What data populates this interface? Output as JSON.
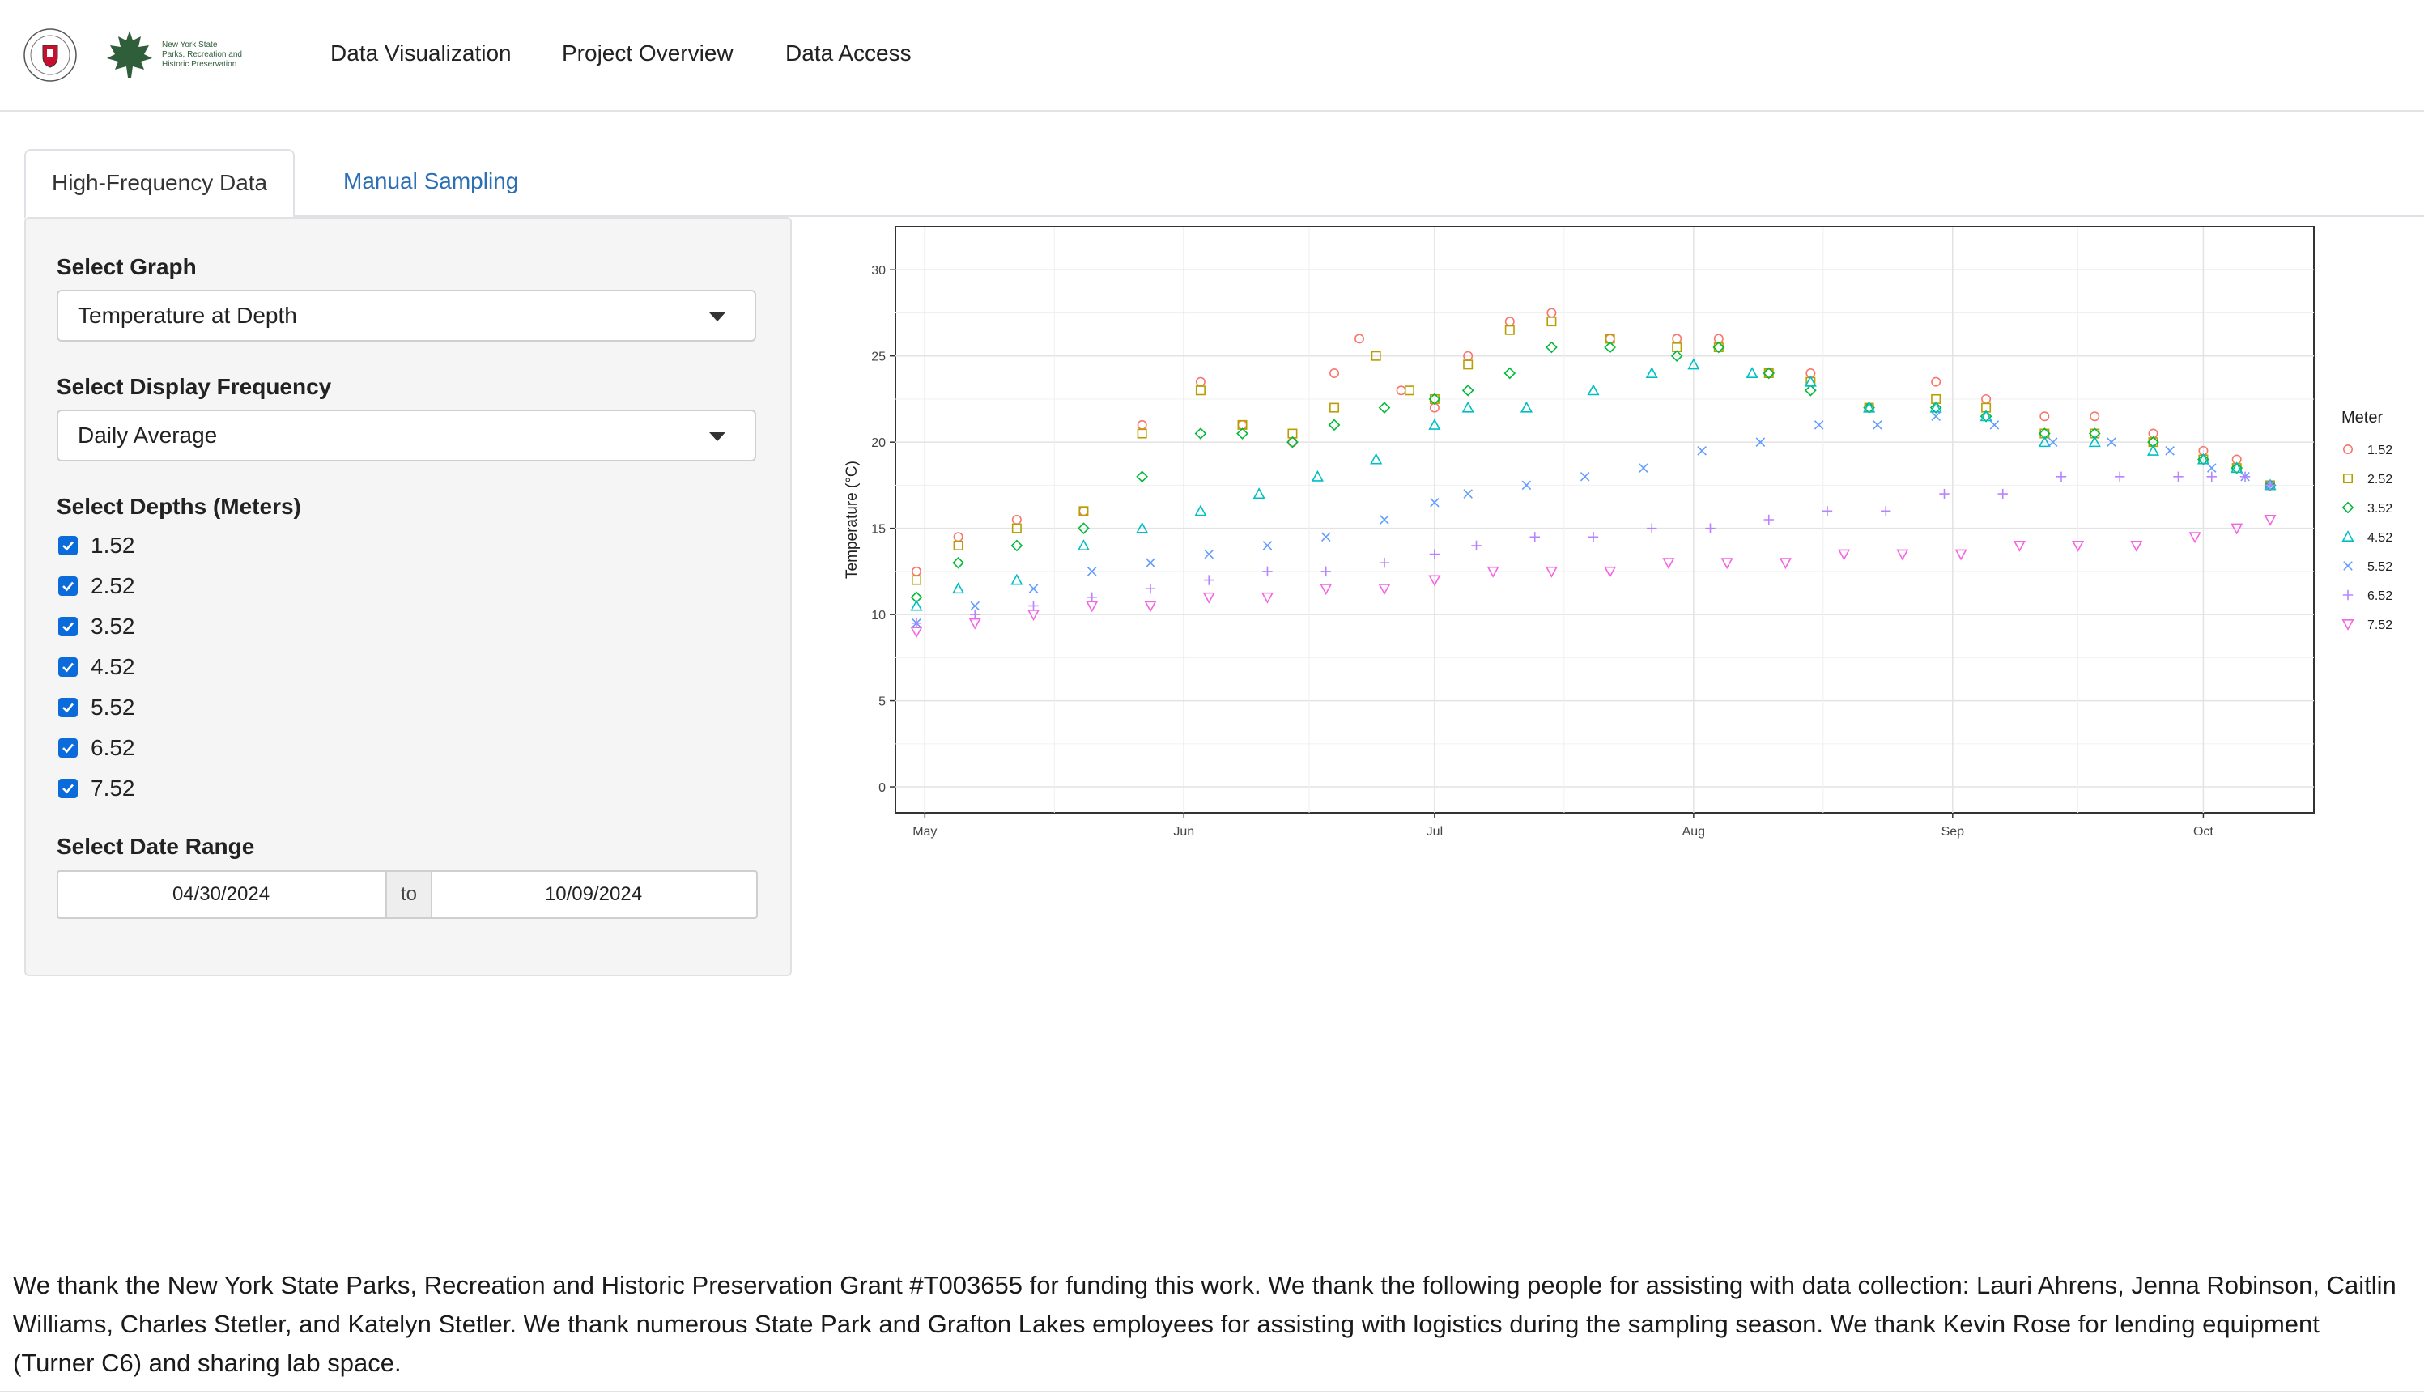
{
  "nav": {
    "items": [
      "Data Visualization",
      "Project Overview",
      "Data Access"
    ],
    "logo_text": [
      "New York State",
      "Parks, Recreation and",
      "Historic Preservation"
    ]
  },
  "tabs": [
    {
      "label": "High-Frequency Data",
      "active": true
    },
    {
      "label": "Manual Sampling",
      "active": false
    }
  ],
  "sidebar": {
    "graph_label": "Select Graph",
    "graph_value": "Temperature at Depth",
    "frequency_label": "Select Display Frequency",
    "frequency_value": "Daily Average",
    "depths_label": "Select Depths (Meters)",
    "depths": [
      {
        "label": "1.52",
        "checked": true
      },
      {
        "label": "2.52",
        "checked": true
      },
      {
        "label": "3.52",
        "checked": true
      },
      {
        "label": "4.52",
        "checked": true
      },
      {
        "label": "5.52",
        "checked": true
      },
      {
        "label": "6.52",
        "checked": true
      },
      {
        "label": "7.52",
        "checked": true
      }
    ],
    "date_label": "Select Date Range",
    "date_start": "04/30/2024",
    "date_sep": "to",
    "date_end": "10/09/2024"
  },
  "chart_data": {
    "type": "scatter",
    "ylabel": "Temperature (°C)",
    "xlabel": "",
    "ylim": [
      0,
      31
    ],
    "yticks": [
      0,
      5,
      10,
      15,
      20,
      25,
      30
    ],
    "xlim": [
      "2024-04-30",
      "2024-10-09"
    ],
    "xticks": [
      {
        "label": "May",
        "date": "2024-05-01"
      },
      {
        "label": "Jun",
        "date": "2024-06-01"
      },
      {
        "label": "Jul",
        "date": "2024-07-01"
      },
      {
        "label": "Aug",
        "date": "2024-08-01"
      },
      {
        "label": "Sep",
        "date": "2024-09-01"
      },
      {
        "label": "Oct",
        "date": "2024-10-01"
      }
    ],
    "grid": true,
    "legend_title": "Meter",
    "legend_position": "right",
    "series": [
      {
        "name": "1.52",
        "color": "#F8766D",
        "shape": "circle",
        "points": [
          [
            "2024-04-30",
            12.5
          ],
          [
            "2024-05-05",
            14.5
          ],
          [
            "2024-05-12",
            15.5
          ],
          [
            "2024-05-20",
            16
          ],
          [
            "2024-05-27",
            21
          ],
          [
            "2024-06-03",
            23.5
          ],
          [
            "2024-06-08",
            21
          ],
          [
            "2024-06-14",
            20
          ],
          [
            "2024-06-19",
            24
          ],
          [
            "2024-06-22",
            26
          ],
          [
            "2024-06-27",
            23
          ],
          [
            "2024-07-01",
            22
          ],
          [
            "2024-07-05",
            25
          ],
          [
            "2024-07-10",
            27
          ],
          [
            "2024-07-15",
            27.5
          ],
          [
            "2024-07-22",
            26
          ],
          [
            "2024-07-30",
            26
          ],
          [
            "2024-08-04",
            26
          ],
          [
            "2024-08-10",
            24
          ],
          [
            "2024-08-15",
            24
          ],
          [
            "2024-08-22",
            22
          ],
          [
            "2024-08-30",
            23.5
          ],
          [
            "2024-09-05",
            22.5
          ],
          [
            "2024-09-12",
            21.5
          ],
          [
            "2024-09-18",
            21.5
          ],
          [
            "2024-09-25",
            20.5
          ],
          [
            "2024-10-01",
            19.5
          ],
          [
            "2024-10-05",
            19
          ],
          [
            "2024-10-09",
            17.5
          ]
        ]
      },
      {
        "name": "2.52",
        "color": "#B79F00",
        "shape": "square",
        "points": [
          [
            "2024-04-30",
            12
          ],
          [
            "2024-05-05",
            14
          ],
          [
            "2024-05-12",
            15
          ],
          [
            "2024-05-20",
            16
          ],
          [
            "2024-05-27",
            20.5
          ],
          [
            "2024-06-03",
            23
          ],
          [
            "2024-06-08",
            21
          ],
          [
            "2024-06-14",
            20.5
          ],
          [
            "2024-06-19",
            22
          ],
          [
            "2024-06-24",
            25
          ],
          [
            "2024-06-28",
            23
          ],
          [
            "2024-07-01",
            22.5
          ],
          [
            "2024-07-05",
            24.5
          ],
          [
            "2024-07-10",
            26.5
          ],
          [
            "2024-07-15",
            27
          ],
          [
            "2024-07-22",
            26
          ],
          [
            "2024-07-30",
            25.5
          ],
          [
            "2024-08-04",
            25.5
          ],
          [
            "2024-08-10",
            24
          ],
          [
            "2024-08-15",
            23.5
          ],
          [
            "2024-08-22",
            22
          ],
          [
            "2024-08-30",
            22.5
          ],
          [
            "2024-09-05",
            22
          ],
          [
            "2024-09-12",
            20.5
          ],
          [
            "2024-09-18",
            20.5
          ],
          [
            "2024-09-25",
            20
          ],
          [
            "2024-10-01",
            19
          ],
          [
            "2024-10-05",
            18.5
          ],
          [
            "2024-10-09",
            17.5
          ]
        ]
      },
      {
        "name": "3.52",
        "color": "#00BA38",
        "shape": "diamond",
        "points": [
          [
            "2024-04-30",
            11
          ],
          [
            "2024-05-05",
            13
          ],
          [
            "2024-05-12",
            14
          ],
          [
            "2024-05-20",
            15
          ],
          [
            "2024-05-27",
            18
          ],
          [
            "2024-06-03",
            20.5
          ],
          [
            "2024-06-08",
            20.5
          ],
          [
            "2024-06-14",
            20
          ],
          [
            "2024-06-19",
            21
          ],
          [
            "2024-06-25",
            22
          ],
          [
            "2024-07-01",
            22.5
          ],
          [
            "2024-07-05",
            23
          ],
          [
            "2024-07-10",
            24
          ],
          [
            "2024-07-15",
            25.5
          ],
          [
            "2024-07-22",
            25.5
          ],
          [
            "2024-07-30",
            25
          ],
          [
            "2024-08-04",
            25.5
          ],
          [
            "2024-08-10",
            24
          ],
          [
            "2024-08-15",
            23
          ],
          [
            "2024-08-22",
            22
          ],
          [
            "2024-08-30",
            22
          ],
          [
            "2024-09-05",
            21.5
          ],
          [
            "2024-09-12",
            20.5
          ],
          [
            "2024-09-18",
            20.5
          ],
          [
            "2024-09-25",
            20
          ],
          [
            "2024-10-01",
            19
          ],
          [
            "2024-10-05",
            18.5
          ],
          [
            "2024-10-09",
            17.5
          ]
        ]
      },
      {
        "name": "4.52",
        "color": "#00BFC4",
        "shape": "triangle",
        "points": [
          [
            "2024-04-30",
            10.5
          ],
          [
            "2024-05-05",
            11.5
          ],
          [
            "2024-05-12",
            12
          ],
          [
            "2024-05-20",
            14
          ],
          [
            "2024-05-27",
            15
          ],
          [
            "2024-06-03",
            16
          ],
          [
            "2024-06-10",
            17
          ],
          [
            "2024-06-17",
            18
          ],
          [
            "2024-06-24",
            19
          ],
          [
            "2024-07-01",
            21
          ],
          [
            "2024-07-05",
            22
          ],
          [
            "2024-07-12",
            22
          ],
          [
            "2024-07-20",
            23
          ],
          [
            "2024-07-27",
            24
          ],
          [
            "2024-08-01",
            24.5
          ],
          [
            "2024-08-08",
            24
          ],
          [
            "2024-08-15",
            23.5
          ],
          [
            "2024-08-22",
            22
          ],
          [
            "2024-08-30",
            22
          ],
          [
            "2024-09-05",
            21.5
          ],
          [
            "2024-09-12",
            20
          ],
          [
            "2024-09-18",
            20
          ],
          [
            "2024-09-25",
            19.5
          ],
          [
            "2024-10-01",
            19
          ],
          [
            "2024-10-05",
            18.5
          ],
          [
            "2024-10-09",
            17.5
          ]
        ]
      },
      {
        "name": "5.52",
        "color": "#619CFF",
        "shape": "x",
        "points": [
          [
            "2024-04-30",
            9.5
          ],
          [
            "2024-05-07",
            10.5
          ],
          [
            "2024-05-14",
            11.5
          ],
          [
            "2024-05-21",
            12.5
          ],
          [
            "2024-05-28",
            13
          ],
          [
            "2024-06-04",
            13.5
          ],
          [
            "2024-06-11",
            14
          ],
          [
            "2024-06-18",
            14.5
          ],
          [
            "2024-06-25",
            15.5
          ],
          [
            "2024-07-01",
            16.5
          ],
          [
            "2024-07-05",
            17
          ],
          [
            "2024-07-12",
            17.5
          ],
          [
            "2024-07-19",
            18
          ],
          [
            "2024-07-26",
            18.5
          ],
          [
            "2024-08-02",
            19.5
          ],
          [
            "2024-08-09",
            20
          ],
          [
            "2024-08-16",
            21
          ],
          [
            "2024-08-23",
            21
          ],
          [
            "2024-08-30",
            21.5
          ],
          [
            "2024-09-06",
            21
          ],
          [
            "2024-09-13",
            20
          ],
          [
            "2024-09-20",
            20
          ],
          [
            "2024-09-27",
            19.5
          ],
          [
            "2024-10-02",
            18.5
          ],
          [
            "2024-10-06",
            18
          ],
          [
            "2024-10-09",
            17.5
          ]
        ]
      },
      {
        "name": "6.52",
        "color": "#B983FF",
        "shape": "plus",
        "points": [
          [
            "2024-04-30",
            9.5
          ],
          [
            "2024-05-07",
            10
          ],
          [
            "2024-05-14",
            10.5
          ],
          [
            "2024-05-21",
            11
          ],
          [
            "2024-05-28",
            11.5
          ],
          [
            "2024-06-04",
            12
          ],
          [
            "2024-06-11",
            12.5
          ],
          [
            "2024-06-18",
            12.5
          ],
          [
            "2024-06-25",
            13
          ],
          [
            "2024-07-01",
            13.5
          ],
          [
            "2024-07-06",
            14
          ],
          [
            "2024-07-13",
            14.5
          ],
          [
            "2024-07-20",
            14.5
          ],
          [
            "2024-07-27",
            15
          ],
          [
            "2024-08-03",
            15
          ],
          [
            "2024-08-10",
            15.5
          ],
          [
            "2024-08-17",
            16
          ],
          [
            "2024-08-24",
            16
          ],
          [
            "2024-08-31",
            17
          ],
          [
            "2024-09-07",
            17
          ],
          [
            "2024-09-14",
            18
          ],
          [
            "2024-09-21",
            18
          ],
          [
            "2024-09-28",
            18
          ],
          [
            "2024-10-02",
            18
          ],
          [
            "2024-10-06",
            18
          ],
          [
            "2024-10-09",
            17.5
          ]
        ]
      },
      {
        "name": "7.52",
        "color": "#F564E3",
        "shape": "triangle-down",
        "points": [
          [
            "2024-04-30",
            9
          ],
          [
            "2024-05-07",
            9.5
          ],
          [
            "2024-05-14",
            10
          ],
          [
            "2024-05-21",
            10.5
          ],
          [
            "2024-05-28",
            10.5
          ],
          [
            "2024-06-04",
            11
          ],
          [
            "2024-06-11",
            11
          ],
          [
            "2024-06-18",
            11.5
          ],
          [
            "2024-06-25",
            11.5
          ],
          [
            "2024-07-01",
            12
          ],
          [
            "2024-07-08",
            12.5
          ],
          [
            "2024-07-15",
            12.5
          ],
          [
            "2024-07-22",
            12.5
          ],
          [
            "2024-07-29",
            13
          ],
          [
            "2024-08-05",
            13
          ],
          [
            "2024-08-12",
            13
          ],
          [
            "2024-08-19",
            13.5
          ],
          [
            "2024-08-26",
            13.5
          ],
          [
            "2024-09-02",
            13.5
          ],
          [
            "2024-09-09",
            14
          ],
          [
            "2024-09-16",
            14
          ],
          [
            "2024-09-23",
            14
          ],
          [
            "2024-09-30",
            14.5
          ],
          [
            "2024-10-05",
            15
          ],
          [
            "2024-10-09",
            15.5
          ]
        ]
      }
    ]
  },
  "footer": {
    "acknowledgment": "We thank the New York State Parks, Recreation and Historic Preservation Grant #T003655 for funding this work. We thank the following people for assisting with data collection: Lauri Ahrens, Jenna Robinson, Caitlin Williams, Charles Stetler, and Katelyn Stetler. We thank numerous State Park and Grafton Lakes employees for assisting with logistics during the sampling season. We thank Kevin Rose for lending equipment (Turner C6) and sharing lab space."
  }
}
